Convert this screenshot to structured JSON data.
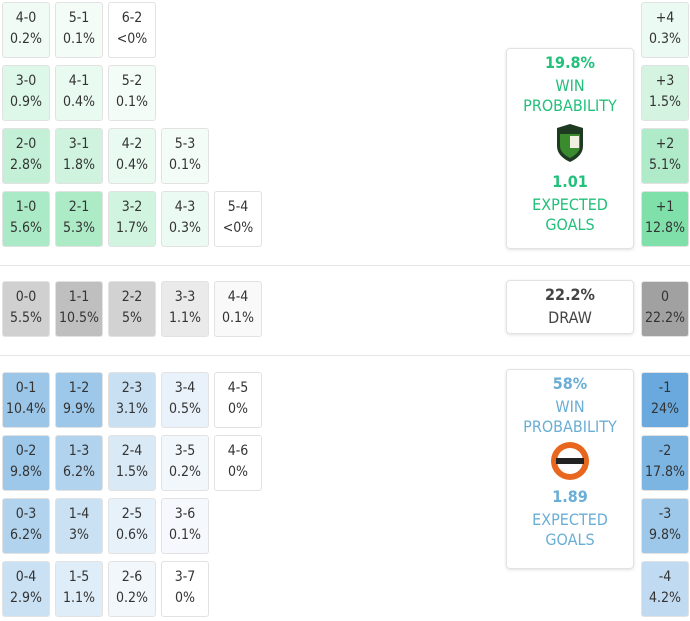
{
  "home": {
    "color": "#2ecc71",
    "text_color": "#22c07a",
    "win_probability": "19.8%",
    "win_label": "WIN PROBABILITY",
    "expected_goals": "1.01",
    "xg_label": "EXPECTED GOALS",
    "rows": [
      [
        {
          "score": "4-0",
          "pct": "0.2%"
        },
        {
          "score": "5-1",
          "pct": "0.1%"
        },
        {
          "score": "6-2",
          "pct": "<0%"
        }
      ],
      [
        {
          "score": "3-0",
          "pct": "0.9%"
        },
        {
          "score": "4-1",
          "pct": "0.4%"
        },
        {
          "score": "5-2",
          "pct": "0.1%"
        }
      ],
      [
        {
          "score": "2-0",
          "pct": "2.8%"
        },
        {
          "score": "3-1",
          "pct": "1.8%"
        },
        {
          "score": "4-2",
          "pct": "0.4%"
        },
        {
          "score": "5-3",
          "pct": "0.1%"
        }
      ],
      [
        {
          "score": "1-0",
          "pct": "5.6%"
        },
        {
          "score": "2-1",
          "pct": "5.3%"
        },
        {
          "score": "3-2",
          "pct": "1.7%"
        },
        {
          "score": "4-3",
          "pct": "0.3%"
        },
        {
          "score": "5-4",
          "pct": "<0%"
        }
      ]
    ],
    "margins": [
      {
        "label": "+4",
        "pct": "0.3%"
      },
      {
        "label": "+3",
        "pct": "1.5%"
      },
      {
        "label": "+2",
        "pct": "5.1%"
      },
      {
        "label": "+1",
        "pct": "12.8%"
      }
    ]
  },
  "draw": {
    "color": "#8a8a8a",
    "text_color": "#444",
    "probability": "22.2%",
    "label": "DRAW",
    "rows": [
      [
        {
          "score": "0-0",
          "pct": "5.5%"
        },
        {
          "score": "1-1",
          "pct": "10.5%"
        },
        {
          "score": "2-2",
          "pct": "5%"
        },
        {
          "score": "3-3",
          "pct": "1.1%"
        },
        {
          "score": "4-4",
          "pct": "0.1%"
        }
      ]
    ],
    "margins": [
      {
        "label": "0",
        "pct": "22.2%"
      }
    ]
  },
  "away": {
    "color": "#4a98d6",
    "text_color": "#6aaed6",
    "win_probability": "58%",
    "win_label": "WIN PROBABILITY",
    "expected_goals": "1.89",
    "xg_label": "EXPECTED GOALS",
    "rows": [
      [
        {
          "score": "0-1",
          "pct": "10.4%"
        },
        {
          "score": "1-2",
          "pct": "9.9%"
        },
        {
          "score": "2-3",
          "pct": "3.1%"
        },
        {
          "score": "3-4",
          "pct": "0.5%"
        },
        {
          "score": "4-5",
          "pct": "0%"
        }
      ],
      [
        {
          "score": "0-2",
          "pct": "9.8%"
        },
        {
          "score": "1-3",
          "pct": "6.2%"
        },
        {
          "score": "2-4",
          "pct": "1.5%"
        },
        {
          "score": "3-5",
          "pct": "0.2%"
        },
        {
          "score": "4-6",
          "pct": "0%"
        }
      ],
      [
        {
          "score": "0-3",
          "pct": "6.2%"
        },
        {
          "score": "1-4",
          "pct": "3%"
        },
        {
          "score": "2-5",
          "pct": "0.6%"
        },
        {
          "score": "3-6",
          "pct": "0.1%"
        }
      ],
      [
        {
          "score": "0-4",
          "pct": "2.9%"
        },
        {
          "score": "1-5",
          "pct": "1.1%"
        },
        {
          "score": "2-6",
          "pct": "0.2%"
        },
        {
          "score": "3-7",
          "pct": "0%"
        }
      ]
    ],
    "margins": [
      {
        "label": "-1",
        "pct": "24%"
      },
      {
        "label": "-2",
        "pct": "17.8%"
      },
      {
        "label": "-3",
        "pct": "9.8%"
      },
      {
        "label": "-4",
        "pct": "4.2%"
      }
    ]
  }
}
